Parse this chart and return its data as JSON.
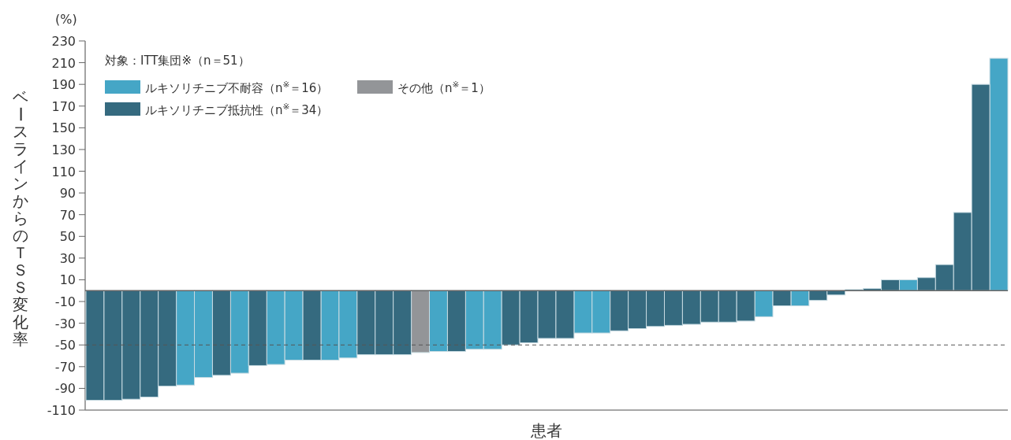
{
  "chart_data": {
    "type": "bar",
    "ylabel": "ベースラインからのＴＳＳ変化率",
    "xlabel": "患者",
    "legend_title": "対象：ITT集団※（n＝51）",
    "annotations": [
      "(%)"
    ],
    "categories": [
      null,
      null,
      null,
      null,
      null,
      null,
      null,
      null,
      null,
      null,
      null,
      null,
      null,
      null,
      null,
      null,
      null,
      null,
      null,
      null,
      null,
      null,
      null,
      null,
      null,
      null,
      null,
      null,
      null,
      null,
      null,
      null,
      null,
      null,
      null,
      null,
      null,
      null,
      null,
      null,
      null,
      null,
      null,
      null,
      null,
      null,
      null,
      null,
      null,
      null,
      null
    ],
    "series": [
      {
        "name": "ルキソリチニブ不耐容（n$^{※}$＝16）",
        "color": "#45a6c6",
        "values": [
          null,
          null,
          null,
          null,
          null,
          -87,
          -80,
          null,
          -76,
          null,
          -68,
          -64,
          null,
          -64,
          -62,
          null,
          null,
          null,
          null,
          -56,
          null,
          -54,
          -54,
          null,
          null,
          null,
          null,
          -39,
          -39,
          null,
          null,
          null,
          null,
          null,
          null,
          null,
          null,
          -24,
          null,
          -14,
          null,
          null,
          null,
          null,
          null,
          10,
          null,
          null,
          null,
          null,
          214
        ]
      },
      {
        "name": "その他（n$^{※}$＝1）",
        "color": "#939598",
        "values": [
          null,
          null,
          null,
          null,
          null,
          null,
          null,
          null,
          null,
          null,
          null,
          null,
          null,
          null,
          null,
          null,
          null,
          null,
          -57,
          null,
          null,
          null,
          null,
          null,
          null,
          null,
          null,
          null,
          null,
          null,
          null,
          null,
          null,
          null,
          null,
          null,
          null,
          null,
          null,
          null,
          null,
          null,
          null,
          null,
          null,
          null,
          null,
          null,
          null,
          null,
          null
        ]
      },
      {
        "name": "ルキソリチニブ抵抗性（n$^{※}$＝34）",
        "color": "#356a7f",
        "values": [
          -101,
          -101,
          -100,
          -98,
          -88,
          null,
          null,
          -78,
          null,
          -69,
          null,
          null,
          -64,
          null,
          null,
          -59,
          -59,
          -59,
          null,
          null,
          -56,
          null,
          null,
          -50,
          -48,
          -44,
          -44,
          null,
          null,
          -37,
          -35,
          -33,
          -32,
          -31,
          -29,
          -29,
          -28,
          null,
          -14,
          null,
          -9,
          -4,
          1,
          2,
          10,
          null,
          12,
          24,
          72,
          190,
          null
        ]
      }
    ],
    "ylim": [
      -110,
      230
    ],
    "yticks": [
      -110,
      -90,
      -70,
      -50,
      -30,
      -10,
      10,
      30,
      50,
      70,
      90,
      110,
      130,
      150,
      170,
      190,
      210,
      230
    ],
    "ref_lines": [
      {
        "axis": "y",
        "value": -50,
        "label": null,
        "color": "#555555",
        "line_style": "dashed"
      }
    ],
    "legend": "top left",
    "grid": false
  }
}
